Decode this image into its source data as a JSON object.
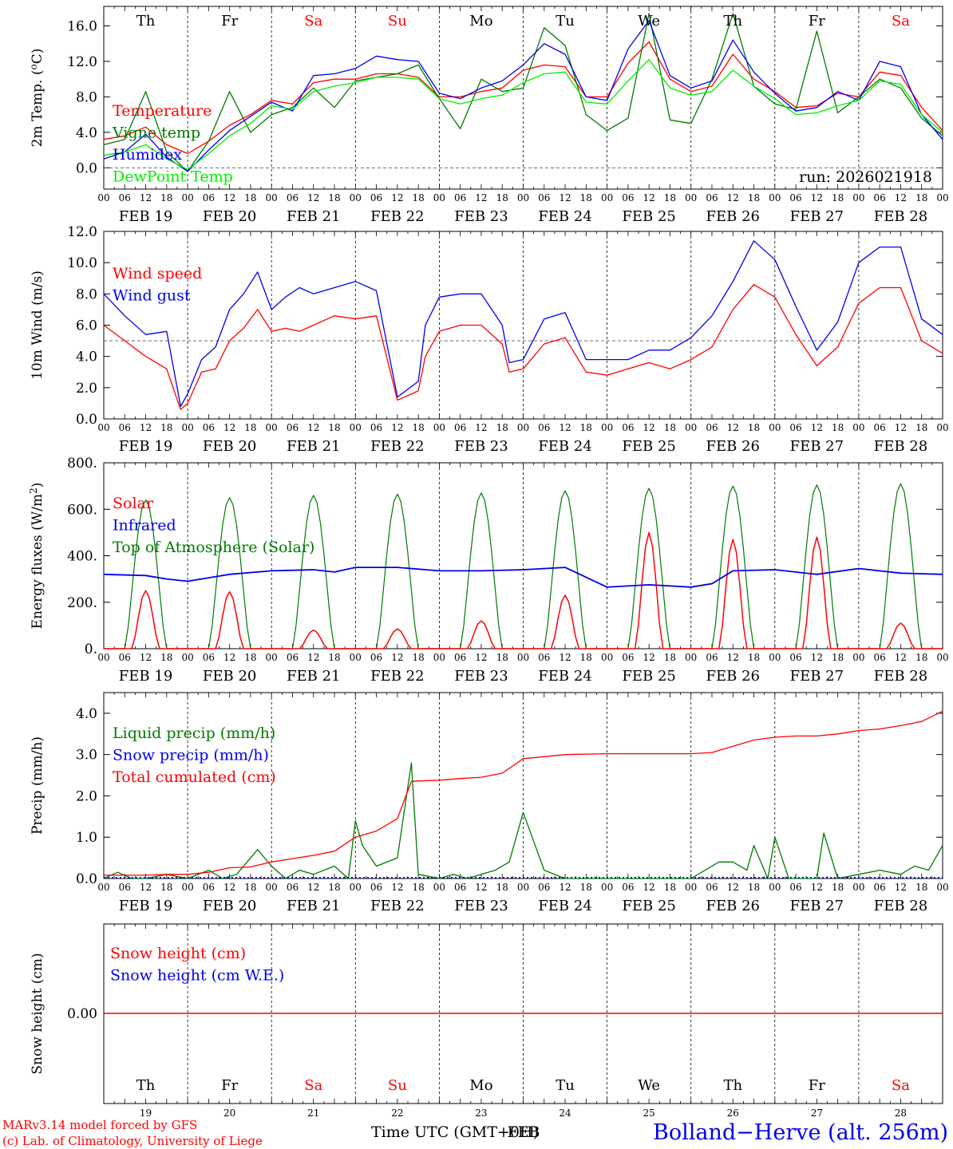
{
  "colors": {
    "red": "#ff0000",
    "green": "#007a00",
    "lightgreen": "#00ee00",
    "blue": "#0000ee",
    "black": "#000000",
    "grey": "#555555"
  },
  "chart_data": {
    "type": "line",
    "days": [
      "Th",
      "Fr",
      "Sa",
      "Su",
      "Mo",
      "Tu",
      "We",
      "Th",
      "Fr",
      "Sa"
    ],
    "weekend_days": [
      2,
      3,
      9
    ],
    "day_dates": [
      "FEB 19",
      "FEB 20",
      "FEB 21",
      "FEB 22",
      "FEB 23",
      "FEB 24",
      "FEB 25",
      "FEB 26",
      "FEB 27",
      "FEB 28"
    ],
    "day_numbers": [
      "19",
      "20",
      "21",
      "22",
      "23",
      "24",
      "25",
      "26",
      "27",
      "28"
    ],
    "hour_ticks": [
      "00",
      "06",
      "12",
      "18"
    ],
    "run_label": "run: 2026021918",
    "xlabel": "Time UTC (GMT+0H)",
    "xlabel_overlap": "FEB",
    "footer_left": [
      "MARv3.14 model forced by GFS",
      "(c) Lab. of Climatology, University of Liege"
    ],
    "footer_right": "Bolland−Herve (alt. 256m)",
    "panels": [
      {
        "id": "temp",
        "ylabel": "2m Temp. (oC)",
        "yticks": [
          "0.0",
          "4.0",
          "8.0",
          "12.0",
          "16.0"
        ],
        "ylim": [
          -2.4,
          18.2
        ],
        "hline": 0,
        "legend": [
          {
            "label": "Temperature",
            "color": "red"
          },
          {
            "label": "Vigne temp",
            "color": "green"
          },
          {
            "label": "Humidex",
            "color": "blue"
          },
          {
            "label": "DewPoint Temp",
            "color": "lightgreen"
          }
        ],
        "series": [
          {
            "name": "Temperature",
            "color": "red",
            "t": [
              0,
              6,
              12,
              18,
              24,
              30,
              36,
              42,
              48,
              54,
              60,
              66,
              72,
              78,
              84,
              90,
              96,
              102,
              108,
              114,
              120,
              126,
              132,
              138,
              144,
              150,
              156,
              162,
              168,
              174,
              180,
              186,
              192,
              198,
              204,
              210,
              216,
              222,
              228,
              234,
              240
            ],
            "v": [
              3.2,
              3.6,
              4.6,
              2.6,
              1.6,
              3.0,
              4.8,
              6.0,
              7.6,
              7.2,
              9.6,
              10.0,
              10.0,
              10.6,
              10.6,
              10.2,
              8.0,
              8.0,
              8.6,
              9.0,
              11.0,
              11.6,
              11.4,
              8.0,
              8.0,
              11.8,
              14.2,
              10.0,
              8.6,
              9.2,
              12.8,
              10.0,
              8.6,
              6.8,
              7.0,
              8.4,
              8.0,
              10.8,
              10.4,
              6.8,
              4.2
            ]
          },
          {
            "name": "Vigne temp",
            "color": "green",
            "t": [
              0,
              6,
              12,
              18,
              24,
              30,
              36,
              42,
              48,
              54,
              60,
              66,
              72,
              78,
              84,
              90,
              96,
              102,
              108,
              114,
              120,
              126,
              132,
              138,
              144,
              150,
              156,
              162,
              168,
              174,
              180,
              186,
              192,
              198,
              204,
              210,
              216,
              222,
              228,
              234,
              240
            ],
            "v": [
              2.6,
              3.2,
              8.6,
              1.8,
              -0.4,
              3.0,
              8.6,
              4.0,
              6.0,
              6.8,
              9.0,
              6.8,
              9.8,
              10.2,
              10.6,
              11.6,
              7.8,
              4.4,
              10.0,
              8.6,
              9.0,
              15.8,
              13.8,
              6.0,
              4.2,
              5.6,
              17.4,
              5.4,
              5.0,
              10.0,
              17.4,
              9.2,
              7.2,
              6.6,
              15.4,
              6.2,
              8.0,
              10.0,
              9.0,
              5.6,
              3.6
            ]
          },
          {
            "name": "Humidex",
            "color": "blue",
            "t": [
              0,
              6,
              12,
              18,
              24,
              30,
              36,
              42,
              48,
              54,
              60,
              66,
              72,
              78,
              84,
              90,
              96,
              102,
              108,
              114,
              120,
              126,
              132,
              138,
              144,
              150,
              156,
              162,
              168,
              174,
              180,
              186,
              192,
              198,
              204,
              210,
              216,
              222,
              228,
              234,
              240
            ],
            "v": [
              1.0,
              1.8,
              3.8,
              1.2,
              -0.4,
              2.0,
              4.2,
              5.8,
              7.4,
              6.4,
              10.4,
              10.6,
              11.2,
              12.6,
              12.2,
              12.0,
              8.4,
              7.8,
              9.0,
              9.8,
              11.6,
              14.0,
              12.8,
              8.0,
              7.6,
              13.4,
              16.6,
              10.4,
              9.0,
              9.8,
              14.4,
              10.8,
              8.4,
              6.4,
              6.8,
              8.6,
              7.6,
              12.0,
              11.4,
              6.0,
              3.2
            ]
          },
          {
            "name": "DewPoint Temp",
            "color": "lightgreen",
            "t": [
              0,
              6,
              12,
              18,
              24,
              30,
              36,
              42,
              48,
              54,
              60,
              66,
              72,
              78,
              84,
              90,
              96,
              102,
              108,
              114,
              120,
              126,
              132,
              138,
              144,
              150,
              156,
              162,
              168,
              174,
              180,
              186,
              192,
              198,
              204,
              210,
              216,
              222,
              228,
              234,
              240
            ],
            "v": [
              1.4,
              1.8,
              2.6,
              1.0,
              -0.2,
              1.6,
              3.6,
              5.0,
              7.0,
              6.6,
              8.6,
              9.2,
              9.6,
              10.2,
              10.2,
              10.0,
              7.8,
              7.2,
              7.8,
              8.2,
              9.6,
              10.6,
              10.8,
              7.4,
              7.2,
              9.8,
              12.2,
              9.0,
              8.2,
              8.6,
              11.0,
              9.2,
              7.8,
              6.0,
              6.2,
              7.0,
              7.6,
              9.8,
              9.4,
              6.0,
              4.0
            ]
          }
        ]
      },
      {
        "id": "wind",
        "ylabel": "10m Wind (m/s)",
        "yticks": [
          "0.0",
          "2.0",
          "4.0",
          "6.0",
          "8.0",
          "10.0",
          "12.0"
        ],
        "ylim": [
          0,
          12
        ],
        "hline": 5,
        "legend": [
          {
            "label": "Wind speed",
            "color": "red"
          },
          {
            "label": "Wind gust",
            "color": "blue"
          }
        ],
        "series": [
          {
            "name": "Wind speed",
            "color": "red",
            "t": [
              0,
              6,
              12,
              18,
              22,
              24,
              28,
              32,
              36,
              40,
              44,
              48,
              52,
              56,
              60,
              66,
              72,
              78,
              84,
              90,
              92,
              96,
              102,
              108,
              114,
              116,
              120,
              126,
              132,
              138,
              144,
              150,
              156,
              162,
              168,
              174,
              180,
              186,
              192,
              198,
              204,
              210,
              216,
              222,
              228,
              234,
              240
            ],
            "v": [
              6.0,
              5.0,
              4.0,
              3.2,
              0.6,
              1.0,
              3.0,
              3.2,
              5.0,
              5.8,
              7.0,
              5.6,
              5.8,
              5.6,
              6.0,
              6.6,
              6.4,
              6.6,
              1.2,
              1.8,
              4.0,
              5.6,
              6.0,
              6.0,
              4.8,
              3.0,
              3.2,
              4.8,
              5.2,
              3.0,
              2.8,
              3.2,
              3.6,
              3.2,
              3.8,
              4.6,
              7.0,
              8.6,
              7.8,
              5.4,
              3.4,
              4.6,
              7.4,
              8.4,
              8.4,
              5.0,
              4.2
            ]
          },
          {
            "name": "Wind gust",
            "color": "blue",
            "t": [
              0,
              6,
              12,
              18,
              22,
              24,
              28,
              32,
              36,
              40,
              44,
              48,
              52,
              56,
              60,
              66,
              72,
              78,
              84,
              90,
              92,
              96,
              102,
              108,
              114,
              116,
              120,
              126,
              132,
              138,
              144,
              150,
              156,
              162,
              168,
              174,
              180,
              186,
              192,
              198,
              204,
              210,
              216,
              222,
              228,
              234,
              240
            ],
            "v": [
              8.0,
              6.6,
              5.4,
              5.6,
              0.8,
              1.6,
              3.8,
              4.6,
              7.0,
              8.0,
              9.4,
              7.0,
              7.8,
              8.4,
              8.0,
              8.4,
              8.8,
              8.2,
              1.4,
              2.4,
              6.0,
              7.8,
              8.0,
              8.0,
              6.0,
              3.6,
              3.8,
              6.4,
              6.8,
              3.8,
              3.8,
              3.8,
              4.4,
              4.4,
              5.2,
              6.6,
              8.8,
              11.4,
              10.2,
              7.2,
              4.4,
              6.2,
              10.0,
              11.0,
              11.0,
              6.4,
              5.4
            ]
          }
        ]
      },
      {
        "id": "energy",
        "ylabel": "Energy fluxes (W/m2)",
        "yticks": [
          "0.",
          "200.",
          "400.",
          "600.",
          "800."
        ],
        "ylim": [
          0,
          800
        ],
        "hline": null,
        "legend": [
          {
            "label": "Solar",
            "color": "red"
          },
          {
            "label": "Infrared",
            "color": "blue"
          },
          {
            "label": "Top of Atmosphere (Solar)",
            "color": "green"
          }
        ],
        "toa_peaks": [
          640,
          650,
          660,
          665,
          670,
          680,
          690,
          700,
          705,
          710
        ],
        "solar_peaks": [
          250,
          245,
          80,
          85,
          120,
          230,
          500,
          470,
          480,
          110
        ],
        "infrared": {
          "t": [
            0,
            12,
            18,
            24,
            36,
            48,
            60,
            66,
            72,
            84,
            96,
            108,
            120,
            132,
            144,
            156,
            168,
            174,
            180,
            192,
            204,
            216,
            228,
            240
          ],
          "v": [
            320,
            315,
            300,
            290,
            320,
            335,
            340,
            330,
            350,
            350,
            335,
            335,
            340,
            350,
            265,
            275,
            265,
            280,
            335,
            340,
            320,
            345,
            325,
            320
          ]
        }
      },
      {
        "id": "precip",
        "ylabel": "Precip (mm/h)",
        "yticks": [
          "0.0",
          "1.0",
          "2.0",
          "3.0",
          "4.0"
        ],
        "ylim": [
          0,
          4.5
        ],
        "hline": null,
        "legend": [
          {
            "label": "Liquid precip (mm/h)",
            "color": "green"
          },
          {
            "label": "Snow precip (mm/h)",
            "color": "blue"
          },
          {
            "label": "Total cumulated (cm)",
            "color": "red"
          }
        ],
        "series": [
          {
            "name": "Liquid precip (mm/h)",
            "color": "green",
            "t": [
              0,
              4,
              8,
              12,
              18,
              24,
              30,
              34,
              38,
              44,
              48,
              52,
              56,
              60,
              66,
              70,
              72,
              74,
              78,
              84,
              88,
              90,
              96,
              100,
              104,
              108,
              112,
              116,
              120,
              126,
              132,
              144,
              156,
              168,
              176,
              180,
              184,
              186,
              190,
              192,
              196,
              200,
              204,
              206,
              210,
              216,
              222,
              228,
              232,
              236,
              240
            ],
            "v": [
              0,
              0.15,
              0,
              0,
              0.1,
              0,
              0.2,
              0,
              0.1,
              0.7,
              0.3,
              0,
              0.2,
              0.1,
              0.3,
              0,
              1.4,
              0.8,
              0.3,
              0.5,
              2.8,
              0.1,
              0,
              0.1,
              0,
              0.1,
              0.2,
              0.4,
              1.6,
              0.2,
              0,
              0,
              0,
              0,
              0.4,
              0.4,
              0.2,
              0.8,
              0,
              1.0,
              0,
              0,
              0,
              1.1,
              0,
              0.1,
              0.2,
              0.1,
              0.3,
              0.2,
              0.8
            ]
          },
          {
            "name": "Total cumulated (cm)",
            "color": "red",
            "t": [
              0,
              6,
              12,
              18,
              24,
              30,
              36,
              42,
              48,
              54,
              60,
              66,
              72,
              78,
              84,
              88,
              90,
              96,
              102,
              108,
              114,
              120,
              126,
              132,
              144,
              156,
              168,
              174,
              180,
              186,
              192,
              198,
              204,
              210,
              216,
              222,
              228,
              234,
              240
            ],
            "v": [
              0.08,
              0.08,
              0.08,
              0.1,
              0.1,
              0.15,
              0.26,
              0.28,
              0.4,
              0.48,
              0.56,
              0.66,
              1.0,
              1.15,
              1.45,
              2.35,
              2.36,
              2.38,
              2.42,
              2.45,
              2.55,
              2.9,
              2.95,
              3.0,
              3.02,
              3.02,
              3.02,
              3.05,
              3.2,
              3.35,
              3.42,
              3.45,
              3.45,
              3.5,
              3.58,
              3.62,
              3.7,
              3.8,
              4.05
            ]
          }
        ]
      },
      {
        "id": "snow",
        "ylabel": "Snow height (cm)",
        "yticks": [
          "0.00"
        ],
        "ylim": [
          -1,
          1
        ],
        "hline": null,
        "legend": [
          {
            "label": "Snow height (cm)",
            "color": "red"
          },
          {
            "label": "Snow height (cm W.E.)",
            "color": "blue"
          }
        ]
      }
    ]
  }
}
